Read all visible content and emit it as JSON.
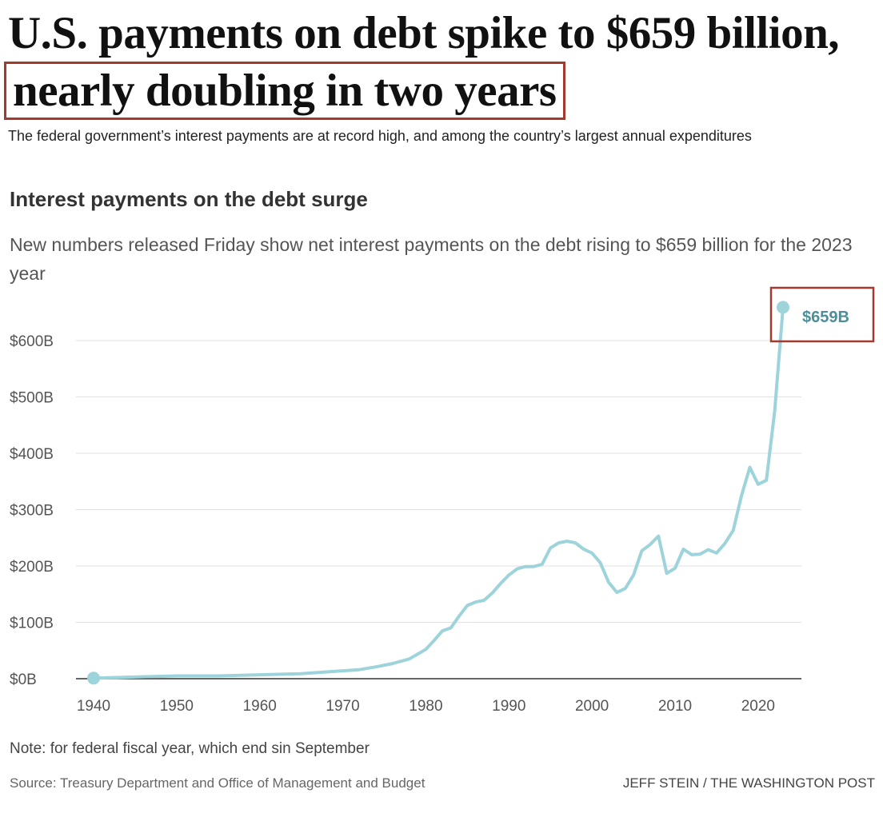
{
  "headline": {
    "part1": "U.S. payments on debt spike to $659 billion, ",
    "highlight": "nearly doubling in two years"
  },
  "dek": "The federal government’s interest payments are at record high, and among the country’s largest annual expenditures",
  "colors": {
    "line": "#9dd3da",
    "end_label": "#4d8f98",
    "highlight_box": "#a33a2e",
    "grid": "#e2e2e2",
    "axis": "#333333"
  },
  "chart_data": {
    "type": "line",
    "title": "Interest payments on the debt surge",
    "subtitle": "New numbers released Friday show net interest payments on the debt rising to $659 billion for the 2023 year",
    "xlabel": "",
    "ylabel": "",
    "xlim": [
      1940,
      2023
    ],
    "ylim": [
      0,
      600
    ],
    "x_ticks": [
      1940,
      1950,
      1960,
      1970,
      1980,
      1990,
      2000,
      2010,
      2020
    ],
    "y_ticks": [
      0,
      100,
      200,
      300,
      400,
      500,
      600
    ],
    "y_tick_labels": [
      "$0B",
      "$100B",
      "$200B",
      "$300B",
      "$400B",
      "$500B",
      "$600B"
    ],
    "grid": "horizontal",
    "end_label": "$659B",
    "series": [
      {
        "x": [
          1940,
          1945,
          1950,
          1955,
          1960,
          1965,
          1970,
          1972,
          1974,
          1976,
          1978,
          1980,
          1981,
          1982,
          1983,
          1984,
          1985,
          1986,
          1987,
          1988,
          1989,
          1990,
          1991,
          1992,
          1993,
          1994,
          1995,
          1996,
          1997,
          1998,
          1999,
          2000,
          2001,
          2002,
          2003,
          2004,
          2005,
          2006,
          2007,
          2008,
          2009,
          2010,
          2011,
          2012,
          2013,
          2014,
          2015,
          2016,
          2017,
          2018,
          2019,
          2020,
          2021,
          2022,
          2023
        ],
        "y": [
          1,
          3,
          5,
          5,
          7,
          9,
          14,
          16,
          21,
          27,
          35,
          52,
          68,
          85,
          90,
          111,
          130,
          136,
          139,
          152,
          169,
          184,
          195,
          199,
          199,
          203,
          232,
          241,
          244,
          241,
          230,
          223,
          206,
          171,
          153,
          160,
          184,
          227,
          238,
          253,
          187,
          196,
          230,
          220,
          221,
          229,
          223,
          240,
          263,
          325,
          375,
          345,
          352,
          475,
          659
        ]
      }
    ]
  },
  "note": "Note: for federal fiscal year, which end sin September",
  "source": "Source: Treasury Department and Office of Management and Budget",
  "credit": "JEFF STEIN / THE WASHINGTON POST"
}
